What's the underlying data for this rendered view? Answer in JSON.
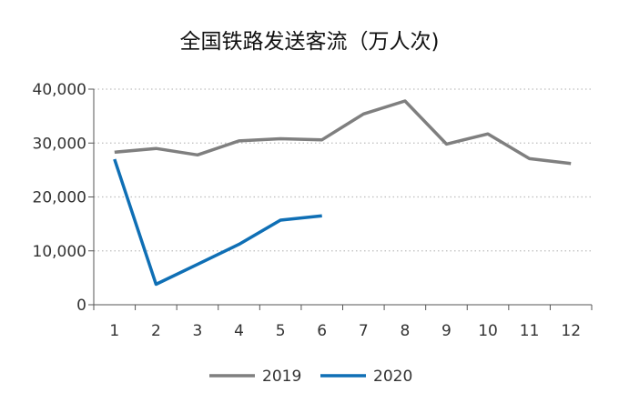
{
  "chart_data": {
    "type": "line",
    "title": "全国铁路发送客流（万人次)",
    "xlabel": "",
    "ylabel": "",
    "categories": [
      "1",
      "2",
      "3",
      "4",
      "5",
      "6",
      "7",
      "8",
      "9",
      "10",
      "11",
      "12"
    ],
    "y_ticks": [
      "0",
      "10,000",
      "20,000",
      "30,000",
      "40,000"
    ],
    "ylim": [
      0,
      40000
    ],
    "grid": "horizontal-dotted",
    "legend_position": "bottom",
    "series": [
      {
        "name": "2019",
        "color": "#7f7f7f",
        "values": [
          28300,
          29000,
          27800,
          30400,
          30800,
          30600,
          35400,
          37800,
          29800,
          31700,
          27100,
          26200
        ]
      },
      {
        "name": "2020",
        "color": "#0f6fb5",
        "values": [
          27000,
          3800,
          7500,
          11200,
          15700,
          16500,
          null,
          null,
          null,
          null,
          null,
          null
        ]
      }
    ]
  }
}
